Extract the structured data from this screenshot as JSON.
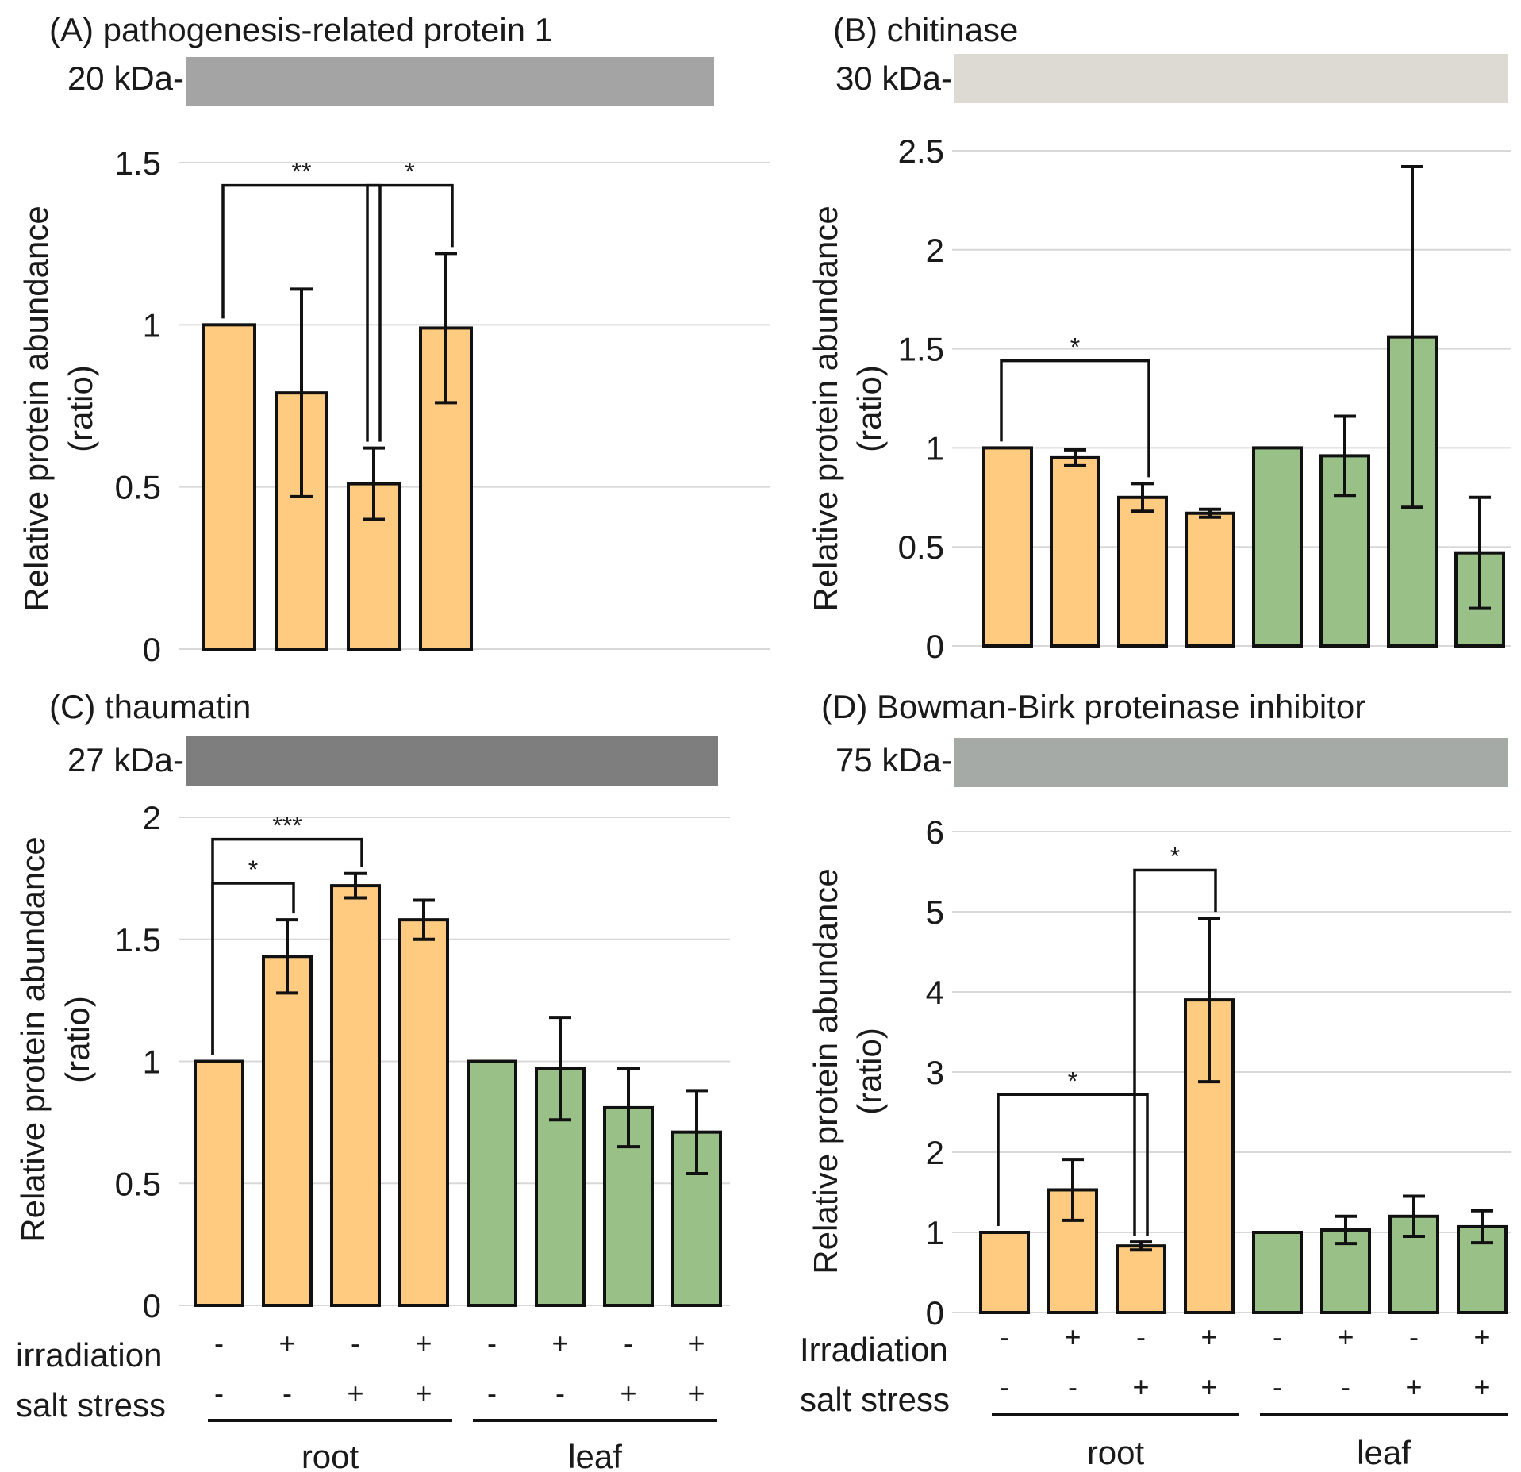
{
  "figure": {
    "series_colors": {
      "root": "#fecb80",
      "leaf": "#98c087"
    },
    "bar_stroke": "#111111",
    "grid_color": "#d8d8d8",
    "row_labels": {
      "top": {
        "irradiation": "irradiation",
        "salt": "salt stress"
      },
      "right": {
        "irradiation": "Irradiation",
        "salt": "salt stress"
      }
    },
    "irradiation_marks": [
      "-",
      "+",
      "-",
      "+",
      "-",
      "+",
      "-",
      "+"
    ],
    "salt_marks": [
      "-",
      "-",
      "+",
      "+",
      "-",
      "-",
      "+",
      "+"
    ],
    "groups": [
      "root",
      "leaf"
    ]
  },
  "chart_data": [
    {
      "id": "A",
      "type": "bar",
      "title": "(A) pathogenesis-related protein 1",
      "band_label": "20 kDa-",
      "band_color": "#a4a4a4",
      "ylabel": "Relative protein abundance",
      "ylabel2": "(ratio)",
      "ylim": [
        0,
        1.5
      ],
      "yticks": [
        "0",
        "0.5",
        "1",
        "1.5"
      ],
      "categories": [
        "root, -irr, -salt",
        "root, +irr, -salt",
        "root, -irr, +salt",
        "root, +irr, +salt"
      ],
      "series": [
        {
          "name": "root",
          "values": [
            1.0,
            0.79,
            0.51,
            0.99
          ],
          "errors": [
            0,
            0.32,
            0.11,
            0.23
          ]
        }
      ],
      "significance": [
        {
          "from": 0,
          "to": 2,
          "label": "**",
          "level": 1.43
        },
        {
          "from": 2,
          "to": 3,
          "label": "*",
          "level": 1.43
        }
      ]
    },
    {
      "id": "B",
      "type": "bar",
      "title": "(B) chitinase",
      "band_label": "30 kDa-",
      "band_color": "#dcdad2",
      "ylabel": "Relative protein abundance",
      "ylabel2": "(ratio)",
      "ylim": [
        0,
        2.5
      ],
      "yticks": [
        "0",
        "0.5",
        "1",
        "1.5",
        "2",
        "2.5"
      ],
      "categories": [
        "root, -irr, -salt",
        "root, +irr, -salt",
        "root, -irr, +salt",
        "root, +irr, +salt",
        "leaf, -irr, -salt",
        "leaf, +irr, -salt",
        "leaf, -irr, +salt",
        "leaf, +irr, +salt"
      ],
      "series": [
        {
          "name": "root",
          "values": [
            1.0,
            0.95,
            0.75,
            0.67,
            null,
            null,
            null,
            null
          ],
          "errors": [
            0,
            0.04,
            0.07,
            0.02,
            0,
            0,
            0,
            0
          ]
        },
        {
          "name": "leaf",
          "values": [
            null,
            null,
            null,
            null,
            1.0,
            0.96,
            1.56,
            0.47
          ],
          "errors": [
            0,
            0,
            0,
            0,
            0,
            0.2,
            0.86,
            0.28
          ]
        }
      ],
      "significance": [
        {
          "from": 0,
          "to": 2,
          "label": "*",
          "level": 1.44
        }
      ]
    },
    {
      "id": "C",
      "type": "bar",
      "title": "(C) thaumatin",
      "band_label": "27 kDa-",
      "band_color": "#7e7e7e",
      "ylabel": "Relative protein abundance",
      "ylabel2": "(ratio)",
      "ylim": [
        0,
        2
      ],
      "yticks": [
        "0",
        "0.5",
        "1",
        "1.5",
        "2"
      ],
      "categories": [
        "root, -irr, -salt",
        "root, +irr, -salt",
        "root, -irr, +salt",
        "root, +irr, +salt",
        "leaf, -irr, -salt",
        "leaf, +irr, -salt",
        "leaf, -irr, +salt",
        "leaf, +irr, +salt"
      ],
      "series": [
        {
          "name": "root",
          "values": [
            1.0,
            1.43,
            1.72,
            1.58,
            null,
            null,
            null,
            null
          ],
          "errors": [
            0,
            0.15,
            0.05,
            0.08,
            0,
            0,
            0,
            0
          ]
        },
        {
          "name": "leaf",
          "values": [
            null,
            null,
            null,
            null,
            1.0,
            0.97,
            0.81,
            0.71
          ],
          "errors": [
            0,
            0,
            0,
            0,
            0,
            0.21,
            0.16,
            0.17
          ]
        }
      ],
      "significance": [
        {
          "from": 0,
          "to": 2,
          "label": "***",
          "level": 1.91
        },
        {
          "from": 0,
          "to": 1,
          "label": "*",
          "level": 1.73
        }
      ],
      "groups": [
        "root",
        "leaf"
      ]
    },
    {
      "id": "D",
      "type": "bar",
      "title": "(D) Bowman-Birk proteinase inhibitor",
      "band_label": "75 kDa-",
      "band_color": "#a6aaa6",
      "ylabel": "Relative protein abundance",
      "ylabel2": "(ratio)",
      "ylim": [
        0,
        6
      ],
      "yticks": [
        "0",
        "1",
        "2",
        "3",
        "4",
        "5",
        "6"
      ],
      "categories": [
        "root, -irr, -salt",
        "root, +irr, -salt",
        "root, -irr, +salt",
        "root, +irr, +salt",
        "leaf, -irr, -salt",
        "leaf, +irr, -salt",
        "leaf, -irr, +salt",
        "leaf, +irr, +salt"
      ],
      "series": [
        {
          "name": "root",
          "values": [
            1.0,
            1.53,
            0.83,
            3.9,
            null,
            null,
            null,
            null
          ],
          "errors": [
            0,
            0.38,
            0.05,
            1.02,
            0,
            0,
            0,
            0
          ]
        },
        {
          "name": "leaf",
          "values": [
            null,
            null,
            null,
            null,
            1.0,
            1.03,
            1.2,
            1.07
          ],
          "errors": [
            0,
            0,
            0,
            0,
            0,
            0.17,
            0.25,
            0.2
          ]
        }
      ],
      "significance": [
        {
          "from": 0,
          "to": 2,
          "label": "*",
          "level": 2.72
        },
        {
          "from": 2,
          "to": 3,
          "label": "*",
          "level": 5.52
        }
      ],
      "groups": [
        "root",
        "leaf"
      ]
    }
  ]
}
